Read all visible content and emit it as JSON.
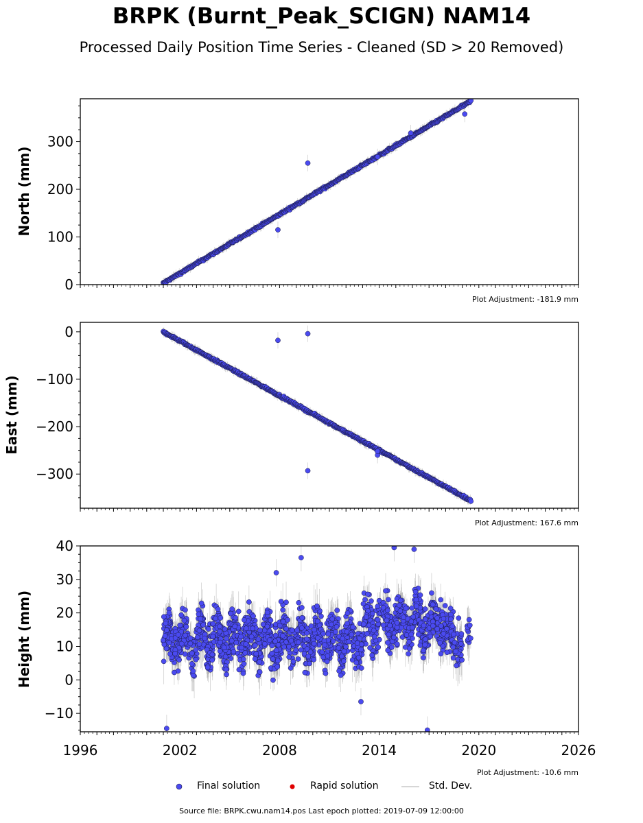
{
  "title": "BRPK (Burnt_Peak_SCIGN) NAM14",
  "subtitle": "Processed Daily Position Time Series - Cleaned (SD > 20 Removed)",
  "legend": {
    "final": "Final solution",
    "rapid": "Rapid solution",
    "std": "Std. Dev."
  },
  "footer": "Source file: BRPK.cwu.nam14.pos  Last epoch plotted: 2019-07-09 12:00:00",
  "colors": {
    "final_fill": "#4a4af0",
    "final_edge": "#1a1a40",
    "rapid": "#e00000",
    "std": "#a0a0a0"
  },
  "chart_data": [
    {
      "type": "scatter",
      "ylabel": "North (mm)",
      "adjustment": "Plot Adjustment: -181.9 mm",
      "xlim": [
        1996,
        2026
      ],
      "ylim": [
        0,
        390
      ],
      "yticks": [
        0,
        100,
        200,
        300
      ],
      "trend": {
        "start": [
          2001.0,
          3
        ],
        "end": [
          2019.52,
          385
        ]
      },
      "outliers": [
        [
          2009.7,
          255
        ],
        [
          2007.9,
          115
        ],
        [
          2013.9,
          268
        ],
        [
          2019.15,
          358
        ],
        [
          2015.9,
          318
        ]
      ],
      "series": [
        {
          "name": "Final solution"
        }
      ]
    },
    {
      "type": "scatter",
      "ylabel": "East (mm)",
      "adjustment": "Plot Adjustment: 167.6 mm",
      "xlim": [
        1996,
        2026
      ],
      "ylim": [
        -372,
        20
      ],
      "yticks": [
        -300,
        -200,
        -100,
        0
      ],
      "trend": {
        "start": [
          2001.0,
          0
        ],
        "end": [
          2019.52,
          -356
        ]
      },
      "outliers": [
        [
          2007.9,
          -18
        ],
        [
          2009.7,
          -4
        ],
        [
          2009.7,
          -293
        ],
        [
          2013.9,
          -260
        ],
        [
          2013.9,
          -252
        ]
      ],
      "series": [
        {
          "name": "Final solution"
        }
      ]
    },
    {
      "type": "scatter",
      "ylabel": "Height (mm)",
      "adjustment": "Plot Adjustment: -10.6 mm",
      "xlim": [
        1996,
        2026
      ],
      "ylim": [
        -15.5,
        40
      ],
      "yticks": [
        -10,
        0,
        10,
        20,
        30,
        40
      ],
      "xticks": [
        1996,
        2002,
        2008,
        2014,
        2020,
        2026
      ],
      "data_start": 2001.0,
      "data_end": 2019.52,
      "gap": [
        2019.0,
        2019.3
      ],
      "baseline": 12,
      "spread": 9,
      "outliers": [
        [
          2007.8,
          32
        ],
        [
          2009.3,
          36.5
        ],
        [
          2001.2,
          -14.5
        ],
        [
          2016.9,
          -15
        ],
        [
          2014.9,
          39.5
        ],
        [
          2016.1,
          39
        ],
        [
          2012.9,
          -6.5
        ]
      ],
      "series": [
        {
          "name": "Final solution"
        }
      ]
    }
  ]
}
